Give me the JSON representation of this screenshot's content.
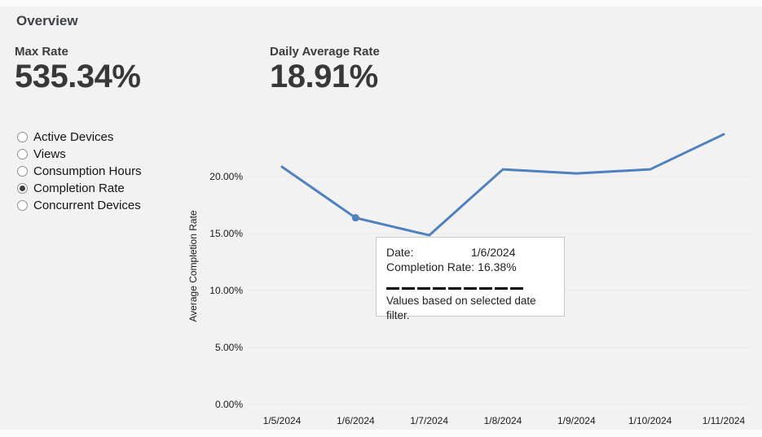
{
  "page": {
    "title": "Overview"
  },
  "kpis": [
    {
      "label": "Max Rate",
      "value": "535.34%"
    },
    {
      "label": "Daily Average Rate",
      "value": "18.91%"
    }
  ],
  "metric_options": [
    {
      "label": "Active Devices",
      "selected": false
    },
    {
      "label": "Views",
      "selected": false
    },
    {
      "label": "Consumption Hours",
      "selected": false
    },
    {
      "label": "Completion Rate",
      "selected": true
    },
    {
      "label": "Concurrent Devices",
      "selected": false
    }
  ],
  "tooltip": {
    "date_label": "Date:",
    "date_value": "1/6/2024",
    "rate_label": "Completion Rate:",
    "rate_value": "16.38%",
    "note": "Values based on selected date filter."
  },
  "chart_data": {
    "type": "line",
    "title": "",
    "xlabel": "",
    "ylabel": "Average Completion Rate",
    "x": [
      "1/5/2024",
      "1/6/2024",
      "1/7/2024",
      "1/8/2024",
      "1/9/2024",
      "1/10/2024",
      "1/11/2024"
    ],
    "series": [
      {
        "name": "Completion Rate",
        "values": [
          20.86,
          16.38,
          14.85,
          20.63,
          20.28,
          20.63,
          23.71
        ]
      }
    ],
    "ylim": [
      0,
      25
    ],
    "yticks": [
      0,
      5,
      10,
      15,
      20
    ],
    "ytick_labels": [
      "0.00%",
      "5.00%",
      "10.00%",
      "15.00%",
      "20.00%"
    ],
    "grid": true,
    "legend": "none",
    "line_color": "#4f81bd",
    "highlight_index": 1
  },
  "colors": {
    "background": "#f2f2f2",
    "accent_line": "#4f81bd",
    "gridline": "#e8e8e8",
    "tooltip_border": "#c9c9c9"
  }
}
